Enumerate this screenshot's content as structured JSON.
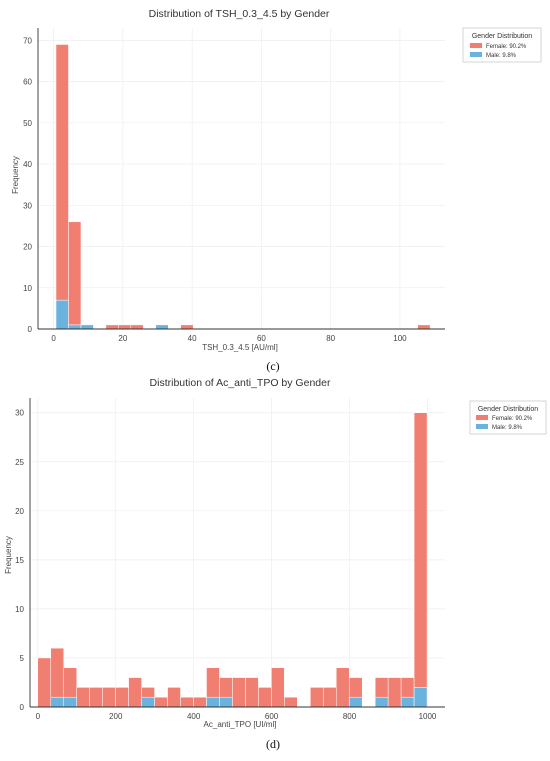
{
  "colors": {
    "female": "#f07f71",
    "male": "#6ab3de",
    "axis": "#333333",
    "grid": "#eeeeee"
  },
  "chart_data": [
    {
      "type": "bar",
      "stacked": true,
      "title": "Distribution of TSH_0.3_4.5 by Gender",
      "xlabel": "TSH_0.3_4.5 [AU/ml]",
      "ylabel": "Frequency",
      "xlim": [
        -4.5,
        113
      ],
      "ylim": [
        0,
        73
      ],
      "xticks": [
        0,
        20,
        40,
        60,
        80,
        100
      ],
      "yticks": [
        0,
        10,
        20,
        30,
        40,
        50,
        60,
        70
      ],
      "grid": true,
      "legend": {
        "title": "Gender Distribution",
        "placement": "outside-top-right",
        "entries": [
          "Female: 90.2%",
          "Male: 9.8%"
        ]
      },
      "caption": "(c)",
      "bin_width": 3.6,
      "bins": [
        {
          "start": 0.7,
          "female": 62,
          "male": 7
        },
        {
          "start": 4.3,
          "female": 25,
          "male": 1
        },
        {
          "start": 7.9,
          "female": 0,
          "male": 1
        },
        {
          "start": 15.1,
          "female": 1,
          "male": 0
        },
        {
          "start": 18.7,
          "female": 1,
          "male": 0
        },
        {
          "start": 22.3,
          "female": 1,
          "male": 0
        },
        {
          "start": 29.5,
          "female": 0,
          "male": 1
        },
        {
          "start": 36.7,
          "female": 1,
          "male": 0
        },
        {
          "start": 105.1,
          "female": 1,
          "male": 0
        }
      ]
    },
    {
      "type": "bar",
      "stacked": true,
      "title": "Distribution of Ac_anti_TPO by Gender",
      "xlabel": "Ac_anti_TPO [UI/ml]",
      "ylabel": "Frequency",
      "xlim": [
        -20,
        1045
      ],
      "ylim": [
        0,
        31.5
      ],
      "xticks": [
        0,
        200,
        400,
        600,
        800,
        1000
      ],
      "yticks": [
        0,
        5,
        10,
        15,
        20,
        25,
        30
      ],
      "grid": true,
      "legend": {
        "title": "Gender Distribution",
        "placement": "outside-top-right",
        "entries": [
          "Female: 90.2%",
          "Male: 9.8%"
        ]
      },
      "caption": "(d)",
      "bin_width": 33.3,
      "bins": [
        {
          "start": 0,
          "female": 5,
          "male": 0
        },
        {
          "start": 33.3,
          "female": 5,
          "male": 1
        },
        {
          "start": 66.6,
          "female": 3,
          "male": 1
        },
        {
          "start": 99.9,
          "female": 2,
          "male": 0
        },
        {
          "start": 133.2,
          "female": 2,
          "male": 0
        },
        {
          "start": 166.5,
          "female": 2,
          "male": 0
        },
        {
          "start": 199.8,
          "female": 2,
          "male": 0
        },
        {
          "start": 233.1,
          "female": 3,
          "male": 0
        },
        {
          "start": 266.4,
          "female": 1,
          "male": 1
        },
        {
          "start": 299.7,
          "female": 1,
          "male": 0
        },
        {
          "start": 333.0,
          "female": 2,
          "male": 0
        },
        {
          "start": 366.3,
          "female": 1,
          "male": 0
        },
        {
          "start": 399.6,
          "female": 1,
          "male": 0
        },
        {
          "start": 432.9,
          "female": 3,
          "male": 1
        },
        {
          "start": 466.2,
          "female": 2,
          "male": 1
        },
        {
          "start": 499.5,
          "female": 3,
          "male": 0
        },
        {
          "start": 532.8,
          "female": 3,
          "male": 0
        },
        {
          "start": 566.1,
          "female": 2,
          "male": 0
        },
        {
          "start": 599.4,
          "female": 4,
          "male": 0
        },
        {
          "start": 632.7,
          "female": 1,
          "male": 0
        },
        {
          "start": 699.3,
          "female": 2,
          "male": 0
        },
        {
          "start": 732.6,
          "female": 2,
          "male": 0
        },
        {
          "start": 765.9,
          "female": 4,
          "male": 0
        },
        {
          "start": 799.2,
          "female": 2,
          "male": 1
        },
        {
          "start": 865.8,
          "female": 2,
          "male": 1
        },
        {
          "start": 899.1,
          "female": 3,
          "male": 0
        },
        {
          "start": 932.4,
          "female": 2,
          "male": 1
        },
        {
          "start": 965.7,
          "female": 28,
          "male": 2
        }
      ]
    }
  ]
}
